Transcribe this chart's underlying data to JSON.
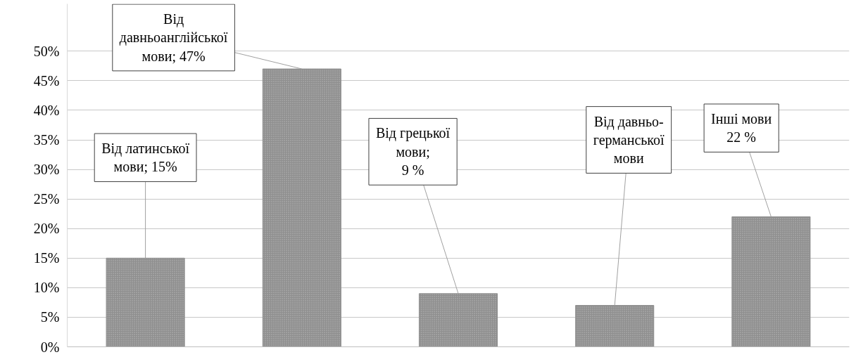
{
  "chart_data": {
    "type": "bar",
    "categories": [
      null,
      null,
      null,
      null,
      null
    ],
    "values": [
      15,
      47,
      9,
      7,
      22
    ],
    "color": "#8f8f8f",
    "value_labels": [
      "Від латинської\nмови; 15%",
      "Від\nдавньоанглійської\nмови; 47%",
      "Від грецької\nмови;\n9 %",
      "Від давньо-\nгерманської\nмови",
      "Інші мови\n22 %"
    ],
    "ylim": [
      0,
      58
    ],
    "yticks": [
      {
        "value": 0,
        "label": "0%"
      },
      {
        "value": 5,
        "label": "5%"
      },
      {
        "value": 10,
        "label": "10%"
      },
      {
        "value": 15,
        "label": "15%"
      },
      {
        "value": 20,
        "label": "20%"
      },
      {
        "value": 25,
        "label": "25%"
      },
      {
        "value": 30,
        "label": "30%"
      },
      {
        "value": 35,
        "label": "35%"
      },
      {
        "value": 40,
        "label": "40%"
      },
      {
        "value": 45,
        "label": "45%"
      },
      {
        "value": 50,
        "label": "50%"
      }
    ],
    "grid": "y"
  }
}
